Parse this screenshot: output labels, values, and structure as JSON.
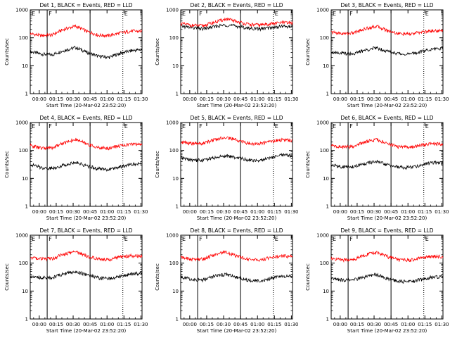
{
  "page": {
    "background": "#ffffff",
    "axis_color": "#000000",
    "events_color": "#000000",
    "lld_color": "#ff0000"
  },
  "shared": {
    "ylabel": "Counts/sec",
    "xlabel": "Start Time (20-Mar-02 23:52:20)",
    "x_tick_labels": [
      "00:00",
      "00:15",
      "00:30",
      "00:45",
      "01:00",
      "01:15",
      "01:30"
    ],
    "y_tick_labels": [
      "1",
      "10",
      "100",
      "1000"
    ],
    "segment_markers": [
      "E",
      "F",
      "E"
    ]
  },
  "chart_data": [
    {
      "type": "line",
      "title": "Det 1, BLACK = Events, RED = LLD",
      "x_minutes_after_start": {
        "min": 0,
        "max": 99
      },
      "y_scale": "log",
      "ylim": [
        1,
        1000
      ],
      "series": [
        {
          "name": "Events",
          "color": "#000000",
          "x": [
            0,
            10,
            20,
            30,
            40,
            50,
            60,
            70,
            80,
            90,
            99
          ],
          "values": [
            32,
            26,
            25,
            35,
            45,
            30,
            22,
            20,
            28,
            35,
            38
          ]
        },
        {
          "name": "LLD",
          "color": "#ff0000",
          "x": [
            0,
            10,
            20,
            30,
            40,
            50,
            60,
            70,
            80,
            90,
            99
          ],
          "values": [
            140,
            120,
            130,
            200,
            260,
            170,
            125,
            120,
            150,
            175,
            170
          ]
        }
      ]
    },
    {
      "type": "line",
      "title": "Det 2, BLACK = Events, RED = LLD",
      "x_minutes_after_start": {
        "min": 0,
        "max": 99
      },
      "y_scale": "log",
      "ylim": [
        1,
        1000
      ],
      "series": [
        {
          "name": "Events",
          "color": "#000000",
          "x": [
            0,
            10,
            20,
            30,
            40,
            50,
            60,
            70,
            80,
            90,
            99
          ],
          "values": [
            260,
            230,
            210,
            250,
            290,
            260,
            220,
            210,
            230,
            260,
            250
          ]
        },
        {
          "name": "LLD",
          "color": "#ff0000",
          "x": [
            0,
            10,
            20,
            30,
            40,
            50,
            60,
            70,
            80,
            90,
            99
          ],
          "values": [
            320,
            280,
            270,
            360,
            470,
            380,
            300,
            290,
            320,
            350,
            340
          ]
        }
      ]
    },
    {
      "type": "line",
      "title": "Det 3, BLACK = Events, RED = LLD",
      "x_minutes_after_start": {
        "min": 0,
        "max": 99
      },
      "y_scale": "log",
      "ylim": [
        1,
        1000
      ],
      "series": [
        {
          "name": "Events",
          "color": "#000000",
          "x": [
            0,
            10,
            20,
            30,
            40,
            50,
            60,
            70,
            80,
            90,
            99
          ],
          "values": [
            32,
            28,
            27,
            36,
            44,
            33,
            27,
            26,
            32,
            40,
            42
          ]
        },
        {
          "name": "LLD",
          "color": "#ff0000",
          "x": [
            0,
            10,
            20,
            30,
            40,
            50,
            60,
            70,
            80,
            90,
            99
          ],
          "values": [
            160,
            140,
            150,
            210,
            260,
            180,
            140,
            135,
            160,
            180,
            175
          ]
        }
      ]
    },
    {
      "type": "line",
      "title": "Det 4, BLACK = Events, RED = LLD",
      "x_minutes_after_start": {
        "min": 0,
        "max": 99
      },
      "y_scale": "log",
      "ylim": [
        1,
        1000
      ],
      "series": [
        {
          "name": "Events",
          "color": "#000000",
          "x": [
            0,
            10,
            20,
            30,
            40,
            50,
            60,
            70,
            80,
            90,
            99
          ],
          "values": [
            32,
            24,
            23,
            30,
            38,
            28,
            22,
            21,
            26,
            32,
            33
          ]
        },
        {
          "name": "LLD",
          "color": "#ff0000",
          "x": [
            0,
            10,
            20,
            30,
            40,
            50,
            60,
            70,
            80,
            90,
            99
          ],
          "values": [
            150,
            120,
            125,
            190,
            250,
            170,
            125,
            120,
            150,
            170,
            165
          ]
        }
      ]
    },
    {
      "type": "line",
      "title": "Det 5, BLACK = Events, RED = LLD",
      "x_minutes_after_start": {
        "min": 0,
        "max": 99
      },
      "y_scale": "log",
      "ylim": [
        1,
        1000
      ],
      "series": [
        {
          "name": "Events",
          "color": "#000000",
          "x": [
            0,
            10,
            20,
            30,
            40,
            50,
            60,
            70,
            80,
            90,
            99
          ],
          "values": [
            55,
            45,
            45,
            55,
            65,
            55,
            45,
            45,
            55,
            70,
            65
          ]
        },
        {
          "name": "LLD",
          "color": "#ff0000",
          "x": [
            0,
            10,
            20,
            30,
            40,
            50,
            60,
            70,
            80,
            90,
            99
          ],
          "values": [
            200,
            175,
            180,
            240,
            300,
            230,
            180,
            175,
            210,
            240,
            230
          ]
        }
      ]
    },
    {
      "type": "line",
      "title": "Det 6, BLACK = Events, RED = LLD",
      "x_minutes_after_start": {
        "min": 0,
        "max": 99
      },
      "y_scale": "log",
      "ylim": [
        1,
        1000
      ],
      "series": [
        {
          "name": "Events",
          "color": "#000000",
          "x": [
            0,
            10,
            20,
            30,
            40,
            50,
            60,
            70,
            80,
            90,
            99
          ],
          "values": [
            30,
            26,
            26,
            34,
            40,
            30,
            25,
            25,
            30,
            37,
            36
          ]
        },
        {
          "name": "LLD",
          "color": "#ff0000",
          "x": [
            0,
            10,
            20,
            30,
            40,
            50,
            60,
            70,
            80,
            90,
            99
          ],
          "values": [
            150,
            130,
            140,
            200,
            250,
            170,
            135,
            130,
            155,
            175,
            170
          ]
        }
      ]
    },
    {
      "type": "line",
      "title": "Det 7, BLACK = Events, RED = LLD",
      "x_minutes_after_start": {
        "min": 0,
        "max": 99
      },
      "y_scale": "log",
      "ylim": [
        1,
        1000
      ],
      "series": [
        {
          "name": "Events",
          "color": "#000000",
          "x": [
            0,
            10,
            20,
            30,
            40,
            50,
            60,
            70,
            80,
            90,
            99
          ],
          "values": [
            35,
            30,
            30,
            42,
            50,
            38,
            30,
            28,
            34,
            42,
            44
          ]
        },
        {
          "name": "LLD",
          "color": "#ff0000",
          "x": [
            0,
            10,
            20,
            30,
            40,
            50,
            60,
            70,
            80,
            90,
            99
          ],
          "values": [
            160,
            140,
            145,
            210,
            260,
            180,
            140,
            135,
            165,
            185,
            180
          ]
        }
      ]
    },
    {
      "type": "line",
      "title": "Det 8, BLACK = Events, RED = LLD",
      "x_minutes_after_start": {
        "min": 0,
        "max": 99
      },
      "y_scale": "log",
      "ylim": [
        1,
        1000
      ],
      "series": [
        {
          "name": "Events",
          "color": "#000000",
          "x": [
            0,
            10,
            20,
            30,
            40,
            50,
            60,
            70,
            80,
            90,
            99
          ],
          "values": [
            32,
            26,
            25,
            34,
            40,
            30,
            24,
            23,
            28,
            34,
            36
          ]
        },
        {
          "name": "LLD",
          "color": "#ff0000",
          "x": [
            0,
            10,
            20,
            30,
            40,
            50,
            60,
            70,
            80,
            90,
            99
          ],
          "values": [
            160,
            135,
            140,
            200,
            250,
            175,
            135,
            130,
            160,
            180,
            175
          ]
        }
      ]
    },
    {
      "type": "line",
      "title": "Det 9, BLACK = Events, RED = LLD",
      "x_minutes_after_start": {
        "min": 0,
        "max": 99
      },
      "y_scale": "log",
      "ylim": [
        1,
        1000
      ],
      "series": [
        {
          "name": "Events",
          "color": "#000000",
          "x": [
            0,
            10,
            20,
            30,
            40,
            50,
            60,
            70,
            80,
            90,
            99
          ],
          "values": [
            30,
            25,
            25,
            32,
            38,
            28,
            22,
            22,
            26,
            32,
            33
          ]
        },
        {
          "name": "LLD",
          "color": "#ff0000",
          "x": [
            0,
            10,
            20,
            30,
            40,
            50,
            60,
            70,
            80,
            90,
            99
          ],
          "values": [
            150,
            130,
            135,
            195,
            245,
            170,
            130,
            128,
            155,
            175,
            170
          ]
        }
      ]
    }
  ]
}
